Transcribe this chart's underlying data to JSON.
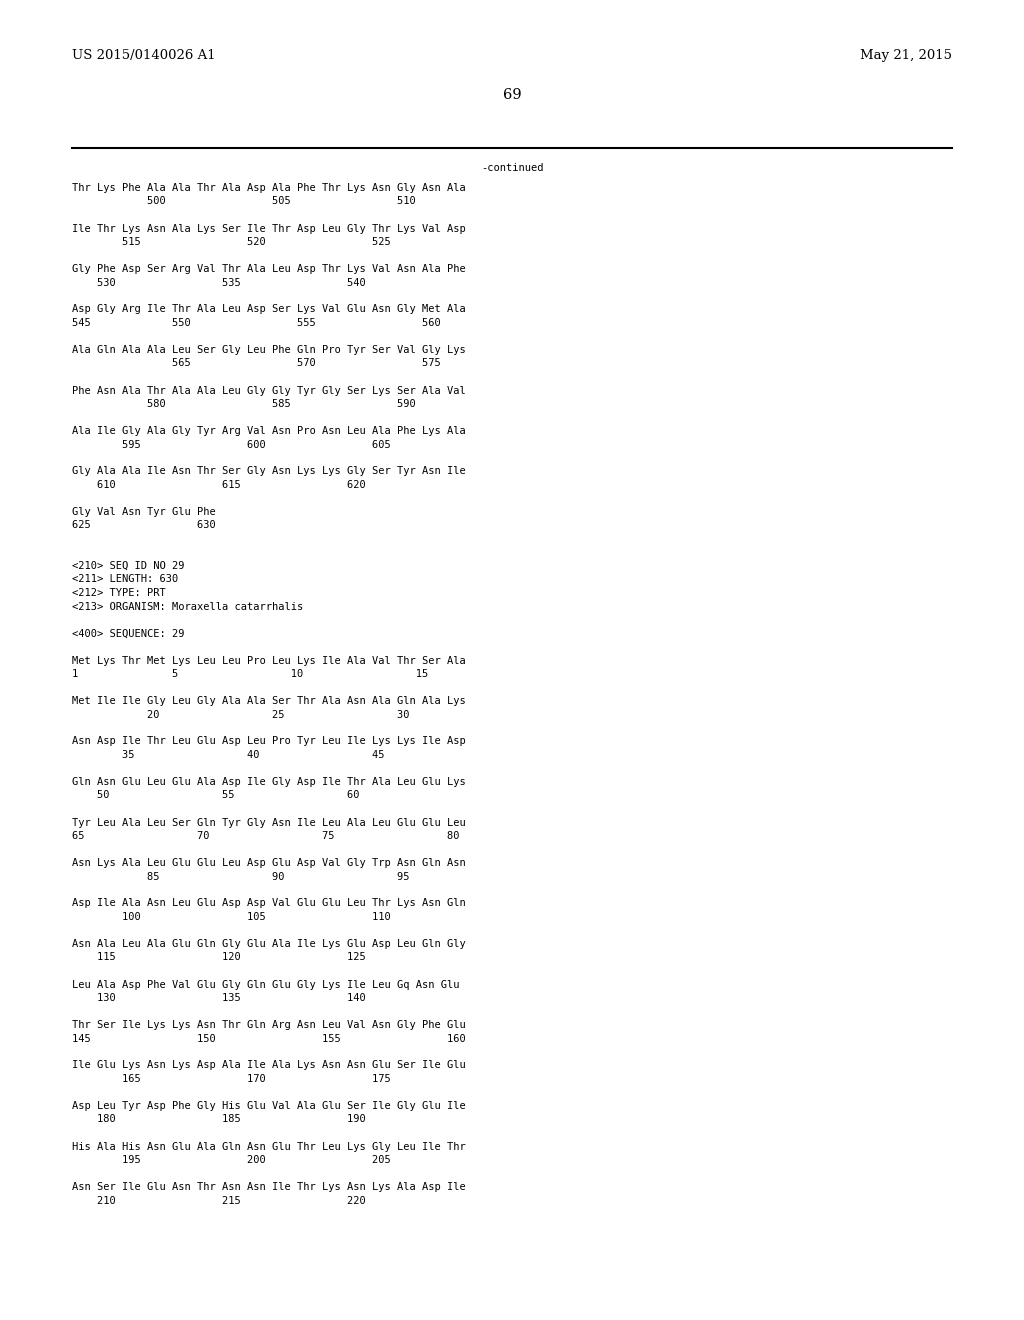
{
  "header_left": "US 2015/0140026 A1",
  "header_right": "May 21, 2015",
  "page_number": "69",
  "continued_label": "-continued",
  "background_color": "#ffffff",
  "text_color": "#000000",
  "font_size": 7.5,
  "header_font_size": 9.5,
  "page_num_font_size": 10.5,
  "lines": [
    "Thr Lys Phe Ala Ala Thr Ala Asp Ala Phe Thr Lys Asn Gly Asn Ala",
    "            500                 505                 510",
    "",
    "Ile Thr Lys Asn Ala Lys Ser Ile Thr Asp Leu Gly Thr Lys Val Asp",
    "        515                 520                 525",
    "",
    "Gly Phe Asp Ser Arg Val Thr Ala Leu Asp Thr Lys Val Asn Ala Phe",
    "    530                 535                 540",
    "",
    "Asp Gly Arg Ile Thr Ala Leu Asp Ser Lys Val Glu Asn Gly Met Ala",
    "545             550                 555                 560",
    "",
    "Ala Gln Ala Ala Leu Ser Gly Leu Phe Gln Pro Tyr Ser Val Gly Lys",
    "                565                 570                 575",
    "",
    "Phe Asn Ala Thr Ala Ala Leu Gly Gly Tyr Gly Ser Lys Ser Ala Val",
    "            580                 585                 590",
    "",
    "Ala Ile Gly Ala Gly Tyr Arg Val Asn Pro Asn Leu Ala Phe Lys Ala",
    "        595                 600                 605",
    "",
    "Gly Ala Ala Ile Asn Thr Ser Gly Asn Lys Lys Gly Ser Tyr Asn Ile",
    "    610                 615                 620",
    "",
    "Gly Val Asn Tyr Glu Phe",
    "625                 630",
    "",
    "",
    "<210> SEQ ID NO 29",
    "<211> LENGTH: 630",
    "<212> TYPE: PRT",
    "<213> ORGANISM: Moraxella catarrhalis",
    "",
    "<400> SEQUENCE: 29",
    "",
    "Met Lys Thr Met Lys Leu Leu Pro Leu Lys Ile Ala Val Thr Ser Ala",
    "1               5                  10                  15",
    "",
    "Met Ile Ile Gly Leu Gly Ala Ala Ser Thr Ala Asn Ala Gln Ala Lys",
    "            20                  25                  30",
    "",
    "Asn Asp Ile Thr Leu Glu Asp Leu Pro Tyr Leu Ile Lys Lys Ile Asp",
    "        35                  40                  45",
    "",
    "Gln Asn Glu Leu Glu Ala Asp Ile Gly Asp Ile Thr Ala Leu Glu Lys",
    "    50                  55                  60",
    "",
    "Tyr Leu Ala Leu Ser Gln Tyr Gly Asn Ile Leu Ala Leu Glu Glu Leu",
    "65                  70                  75                  80",
    "",
    "Asn Lys Ala Leu Glu Glu Leu Asp Glu Asp Val Gly Trp Asn Gln Asn",
    "            85                  90                  95",
    "",
    "Asp Ile Ala Asn Leu Glu Asp Asp Val Glu Glu Leu Thr Lys Asn Gln",
    "        100                 105                 110",
    "",
    "Asn Ala Leu Ala Glu Gln Gly Glu Ala Ile Lys Glu Asp Leu Gln Gly",
    "    115                 120                 125",
    "",
    "Leu Ala Asp Phe Val Glu Gly Gln Glu Gly Lys Ile Leu Gq Asn Glu",
    "    130                 135                 140",
    "",
    "Thr Ser Ile Lys Lys Asn Thr Gln Arg Asn Leu Val Asn Gly Phe Glu",
    "145                 150                 155                 160",
    "",
    "Ile Glu Lys Asn Lys Asp Ala Ile Ala Lys Asn Asn Glu Ser Ile Glu",
    "        165                 170                 175",
    "",
    "Asp Leu Tyr Asp Phe Gly His Glu Val Ala Glu Ser Ile Gly Glu Ile",
    "    180                 185                 190",
    "",
    "His Ala His Asn Glu Ala Gln Asn Glu Thr Leu Lys Gly Leu Ile Thr",
    "        195                 200                 205",
    "",
    "Asn Ser Ile Glu Asn Thr Asn Asn Ile Thr Lys Asn Lys Ala Asp Ile",
    "    210                 215                 220"
  ]
}
